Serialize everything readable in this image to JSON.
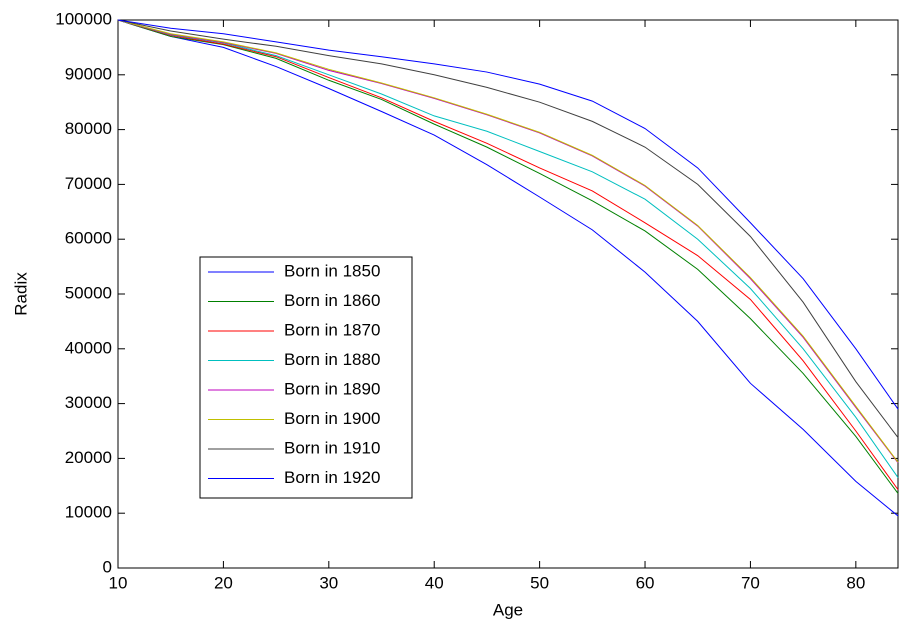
{
  "chart_data": {
    "type": "line",
    "xlabel": "Age",
    "ylabel": "Radix",
    "x": [
      10,
      15,
      20,
      25,
      30,
      35,
      40,
      45,
      50,
      55,
      60,
      65,
      70,
      75,
      80,
      84
    ],
    "xlim": [
      10,
      84
    ],
    "xticks": [
      10,
      20,
      30,
      40,
      50,
      60,
      70,
      80
    ],
    "ylim": [
      0,
      100000
    ],
    "yticks": [
      0,
      10000,
      20000,
      30000,
      40000,
      50000,
      60000,
      70000,
      80000,
      90000,
      100000
    ],
    "grid": false,
    "legend": "lower left",
    "series": [
      {
        "name": "Born in 1850",
        "color": "#0000ff",
        "values": [
          100000,
          97000,
          95000,
          91500,
          87500,
          83300,
          79000,
          73600,
          67700,
          61700,
          54000,
          45000,
          33700,
          25300,
          15800,
          9500
        ]
      },
      {
        "name": "Born in 1860",
        "color": "#008000",
        "values": [
          100000,
          97000,
          95500,
          93000,
          89000,
          85500,
          81000,
          76800,
          72000,
          67000,
          61500,
          54500,
          45500,
          35500,
          24000,
          13600
        ]
      },
      {
        "name": "Born in 1870",
        "color": "#ff0000",
        "values": [
          100000,
          97200,
          95600,
          93300,
          89500,
          85800,
          81500,
          77500,
          73000,
          68800,
          63000,
          57000,
          49000,
          37800,
          25000,
          14300
        ]
      },
      {
        "name": "Born in 1880",
        "color": "#00bfbf",
        "values": [
          100000,
          97300,
          95800,
          93500,
          90000,
          86500,
          82500,
          79700,
          76000,
          72300,
          67300,
          60000,
          51000,
          40000,
          27500,
          16500
        ]
      },
      {
        "name": "Born in 1890",
        "color": "#bf00bf",
        "values": [
          100000,
          97400,
          95900,
          93900,
          90800,
          88400,
          85700,
          82700,
          79400,
          75200,
          69700,
          62400,
          52800,
          42100,
          29300,
          19200
        ]
      },
      {
        "name": "Born in 1900",
        "color": "#bfbf00",
        "values": [
          100000,
          97500,
          96000,
          94000,
          91000,
          88500,
          85800,
          82800,
          79500,
          75300,
          69800,
          62500,
          53000,
          42300,
          29500,
          19300
        ]
      },
      {
        "name": "Born in 1910",
        "color": "#404040",
        "values": [
          100000,
          98000,
          96500,
          95200,
          93500,
          92000,
          90000,
          87700,
          85000,
          81500,
          76800,
          70000,
          60500,
          48500,
          34000,
          23800
        ]
      },
      {
        "name": "Born in 1920",
        "color": "#0000ff",
        "values": [
          100000,
          98500,
          97500,
          96000,
          94500,
          93300,
          92000,
          90500,
          88300,
          85200,
          80200,
          73000,
          63000,
          52800,
          40000,
          29000
        ]
      }
    ]
  }
}
